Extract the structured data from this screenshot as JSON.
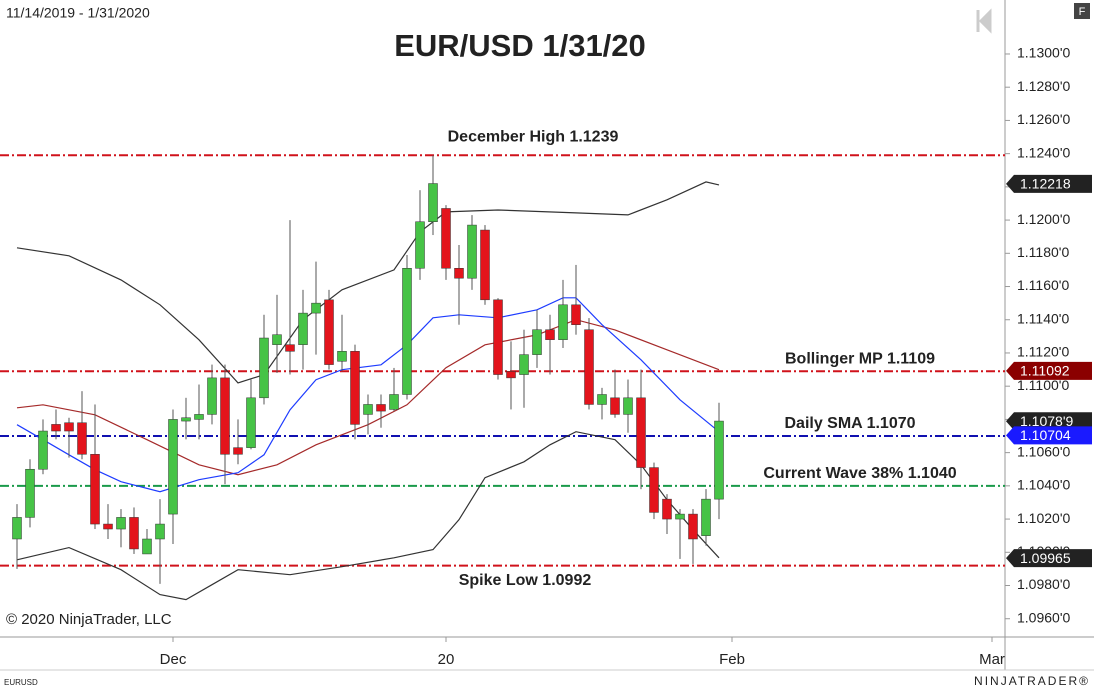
{
  "chart_data": {
    "type": "candlestick",
    "title": "EUR/USD 1/31/20",
    "date_range": "11/14/2019 - 1/31/2020",
    "copyright": "© 2020 NinjaTrader, LLC",
    "instrument": "EURUSD",
    "brand": "NINJATRADER®",
    "panel_button": "F",
    "xlim": [
      -1.3077,
      76
    ],
    "xticks": [
      {
        "value": 12,
        "label": "Dec"
      },
      {
        "value": 33,
        "label": "20"
      },
      {
        "value": 55,
        "label": "Feb"
      },
      {
        "value": 75,
        "label": "Mar"
      }
    ],
    "ylim": [
      1.0949,
      1.13325
    ],
    "yticks": [
      {
        "value": 1.096,
        "label": "1.0960'0"
      },
      {
        "value": 1.098,
        "label": "1.0980'0"
      },
      {
        "value": 1.1,
        "label": "1.1000'0"
      },
      {
        "value": 1.102,
        "label": "1.1020'0"
      },
      {
        "value": 1.104,
        "label": "1.1040'0"
      },
      {
        "value": 1.106,
        "label": "1.1060'0"
      },
      {
        "value": 1.108,
        "label": "1.1080'0"
      },
      {
        "value": 1.11,
        "label": "1.1100'0"
      },
      {
        "value": 1.112,
        "label": "1.1120'0"
      },
      {
        "value": 1.114,
        "label": "1.1140'0"
      },
      {
        "value": 1.116,
        "label": "1.1160'0"
      },
      {
        "value": 1.118,
        "label": "1.1180'0"
      },
      {
        "value": 1.12,
        "label": "1.1200'0"
      },
      {
        "value": 1.122,
        "label": "1.1220'0"
      },
      {
        "value": 1.124,
        "label": "1.1240'0"
      },
      {
        "value": 1.126,
        "label": "1.1260'0"
      },
      {
        "value": 1.128,
        "label": "1.1280'0"
      },
      {
        "value": 1.13,
        "label": "1.1300'0"
      }
    ],
    "up_color": "#46c346",
    "down_color": "#e3141c",
    "open": [
      1.1008,
      1.1021,
      1.105,
      1.1077,
      1.1078,
      1.1078,
      1.1059,
      1.1017,
      1.1014,
      1.1021,
      1.0999,
      1.1008,
      1.1023,
      1.1079,
      1.108,
      1.1083,
      1.1105,
      1.1063,
      1.1063,
      1.1093,
      1.1125,
      1.1125,
      1.1125,
      1.1144,
      1.1152,
      1.1115,
      1.1121,
      1.1083,
      1.1089,
      1.1086,
      1.1095,
      1.1171,
      1.1199,
      1.1207,
      1.1171,
      1.1165,
      1.1194,
      1.1152,
      1.1109,
      1.1107,
      1.1119,
      1.1134,
      1.1128,
      1.1149,
      1.1134,
      1.1089,
      1.1093,
      1.1083,
      1.1093,
      1.1051,
      1.1032,
      1.102,
      1.1023,
      1.101,
      1.1032
    ],
    "high": [
      1.1029,
      1.1056,
      1.108,
      1.1086,
      1.1081,
      1.1097,
      1.1089,
      1.1029,
      1.1026,
      1.1027,
      1.1014,
      1.1032,
      1.1086,
      1.1093,
      1.1101,
      1.1113,
      1.1113,
      1.108,
      1.1104,
      1.1143,
      1.1155,
      1.12,
      1.1158,
      1.1175,
      1.1158,
      1.1143,
      1.1125,
      1.1095,
      1.1095,
      1.1111,
      1.1179,
      1.1218,
      1.1239,
      1.1209,
      1.1185,
      1.1203,
      1.1197,
      1.1153,
      1.1127,
      1.1134,
      1.1146,
      1.1143,
      1.1164,
      1.1173,
      1.1141,
      1.1099,
      1.111,
      1.1104,
      1.111,
      1.1054,
      1.1035,
      1.1026,
      1.1026,
      1.1038,
      1.109
    ],
    "low": [
      1.099,
      1.1015,
      1.1047,
      1.1068,
      1.1057,
      1.1056,
      1.1014,
      1.1008,
      1.1003,
      1.0999,
      1.0999,
      1.0981,
      1.1005,
      1.1068,
      1.1068,
      1.1077,
      1.1041,
      1.1053,
      1.1062,
      1.1089,
      1.1108,
      1.1107,
      1.111,
      1.1119,
      1.111,
      1.1109,
      1.1068,
      1.1071,
      1.1075,
      1.1085,
      1.1092,
      1.1164,
      1.1191,
      1.1164,
      1.1137,
      1.1158,
      1.1149,
      1.1104,
      1.1086,
      1.1087,
      1.1111,
      1.1107,
      1.1123,
      1.1131,
      1.1086,
      1.108,
      1.1081,
      1.1072,
      1.1038,
      1.102,
      1.1011,
      1.0996,
      1.0993,
      1.1004,
      1.102
    ],
    "close": [
      1.1021,
      1.105,
      1.1073,
      1.1073,
      1.1073,
      1.1059,
      1.1017,
      1.1014,
      1.1021,
      1.1002,
      1.1008,
      1.1017,
      1.108,
      1.1081,
      1.1083,
      1.1105,
      1.1059,
      1.1059,
      1.1093,
      1.1129,
      1.1131,
      1.1121,
      1.1144,
      1.115,
      1.1113,
      1.1121,
      1.1077,
      1.1089,
      1.1085,
      1.1095,
      1.1171,
      1.1199,
      1.1222,
      1.1171,
      1.1165,
      1.1197,
      1.1152,
      1.1107,
      1.1105,
      1.1119,
      1.1134,
      1.1128,
      1.1149,
      1.1137,
      1.1089,
      1.1095,
      1.1083,
      1.1093,
      1.1051,
      1.1024,
      1.102,
      1.1023,
      1.1008,
      1.1032,
      1.1079
    ],
    "series": [
      {
        "color": "#333333",
        "x": [
          0,
          4,
          8,
          11,
          14,
          17,
          19,
          22,
          25,
          29,
          31,
          33,
          37,
          43,
          47,
          50,
          53,
          54
        ],
        "values": [
          1.11833,
          1.11785,
          1.1164,
          1.1149,
          1.11279,
          1.1102,
          1.11069,
          1.114,
          1.1158,
          1.117,
          1.11929,
          1.12049,
          1.12061,
          1.12043,
          1.12031,
          1.12122,
          1.1223,
          1.12212
        ]
      },
      {
        "color": "#333333",
        "x": [
          0,
          4,
          8,
          11,
          13,
          15,
          17,
          21,
          25,
          29,
          32,
          34,
          36,
          39,
          41,
          43,
          46,
          48,
          50,
          52,
          54
        ],
        "values": [
          1.09955,
          1.10028,
          1.09895,
          1.09745,
          1.09715,
          1.09805,
          1.09895,
          1.09865,
          1.09913,
          1.09967,
          1.10016,
          1.10196,
          1.10449,
          1.10545,
          1.10647,
          1.10726,
          1.10678,
          1.10527,
          1.10316,
          1.10136,
          1.09967
        ]
      },
      {
        "color": "#a52a2a",
        "x": [
          0,
          2,
          6,
          10,
          14,
          17,
          20,
          23,
          27,
          30,
          33,
          36,
          40,
          43,
          46,
          50,
          54
        ],
        "values": [
          1.1087,
          1.10888,
          1.10828,
          1.10678,
          1.10527,
          1.10467,
          1.10527,
          1.10647,
          1.10768,
          1.10888,
          1.11111,
          1.11249,
          1.11309,
          1.114,
          1.11339,
          1.11219,
          1.11099
        ]
      },
      {
        "color": "#1e3cff",
        "x": [
          0,
          2,
          4,
          6,
          8,
          11,
          14,
          17,
          19,
          21,
          23,
          25,
          28,
          30,
          32,
          34,
          37,
          40,
          42,
          43,
          45,
          48,
          51,
          54
        ],
        "values": [
          1.10768,
          1.10678,
          1.10587,
          1.10497,
          1.10425,
          1.10365,
          1.10437,
          1.10479,
          1.10587,
          1.10858,
          1.11039,
          1.11099,
          1.11129,
          1.11249,
          1.11412,
          1.1143,
          1.11412,
          1.1146,
          1.11532,
          1.11532,
          1.1137,
          1.11159,
          1.10918,
          1.10726
        ]
      }
    ],
    "levels": [
      {
        "label": "December High 1.1239",
        "value": 1.1239,
        "color": "#d0121b"
      },
      {
        "label": "Bollinger MP 1.1109",
        "value": 1.1109,
        "color": "#d0121b"
      },
      {
        "label": "Daily SMA 1.1070",
        "value": 1.107,
        "color": "#1010b0"
      },
      {
        "label": "Current Wave 38% 1.1040",
        "value": 1.104,
        "color": "#1a9a4a"
      },
      {
        "label": "Spike Low 1.0992",
        "value": 1.0992,
        "color": "#d0121b"
      }
    ],
    "price_markers": [
      {
        "value": 1.12218,
        "label": "1.12218",
        "color": "#222222"
      },
      {
        "value": 1.11092,
        "label": "1.11092",
        "color": "#8b0000"
      },
      {
        "value": 1.10789,
        "label": "1.1078'9",
        "color": "#222222"
      },
      {
        "value": 1.10704,
        "label": "1.10704",
        "color": "#1a1aff"
      },
      {
        "value": 1.09965,
        "label": "1.09965",
        "color": "#222222"
      }
    ]
  }
}
